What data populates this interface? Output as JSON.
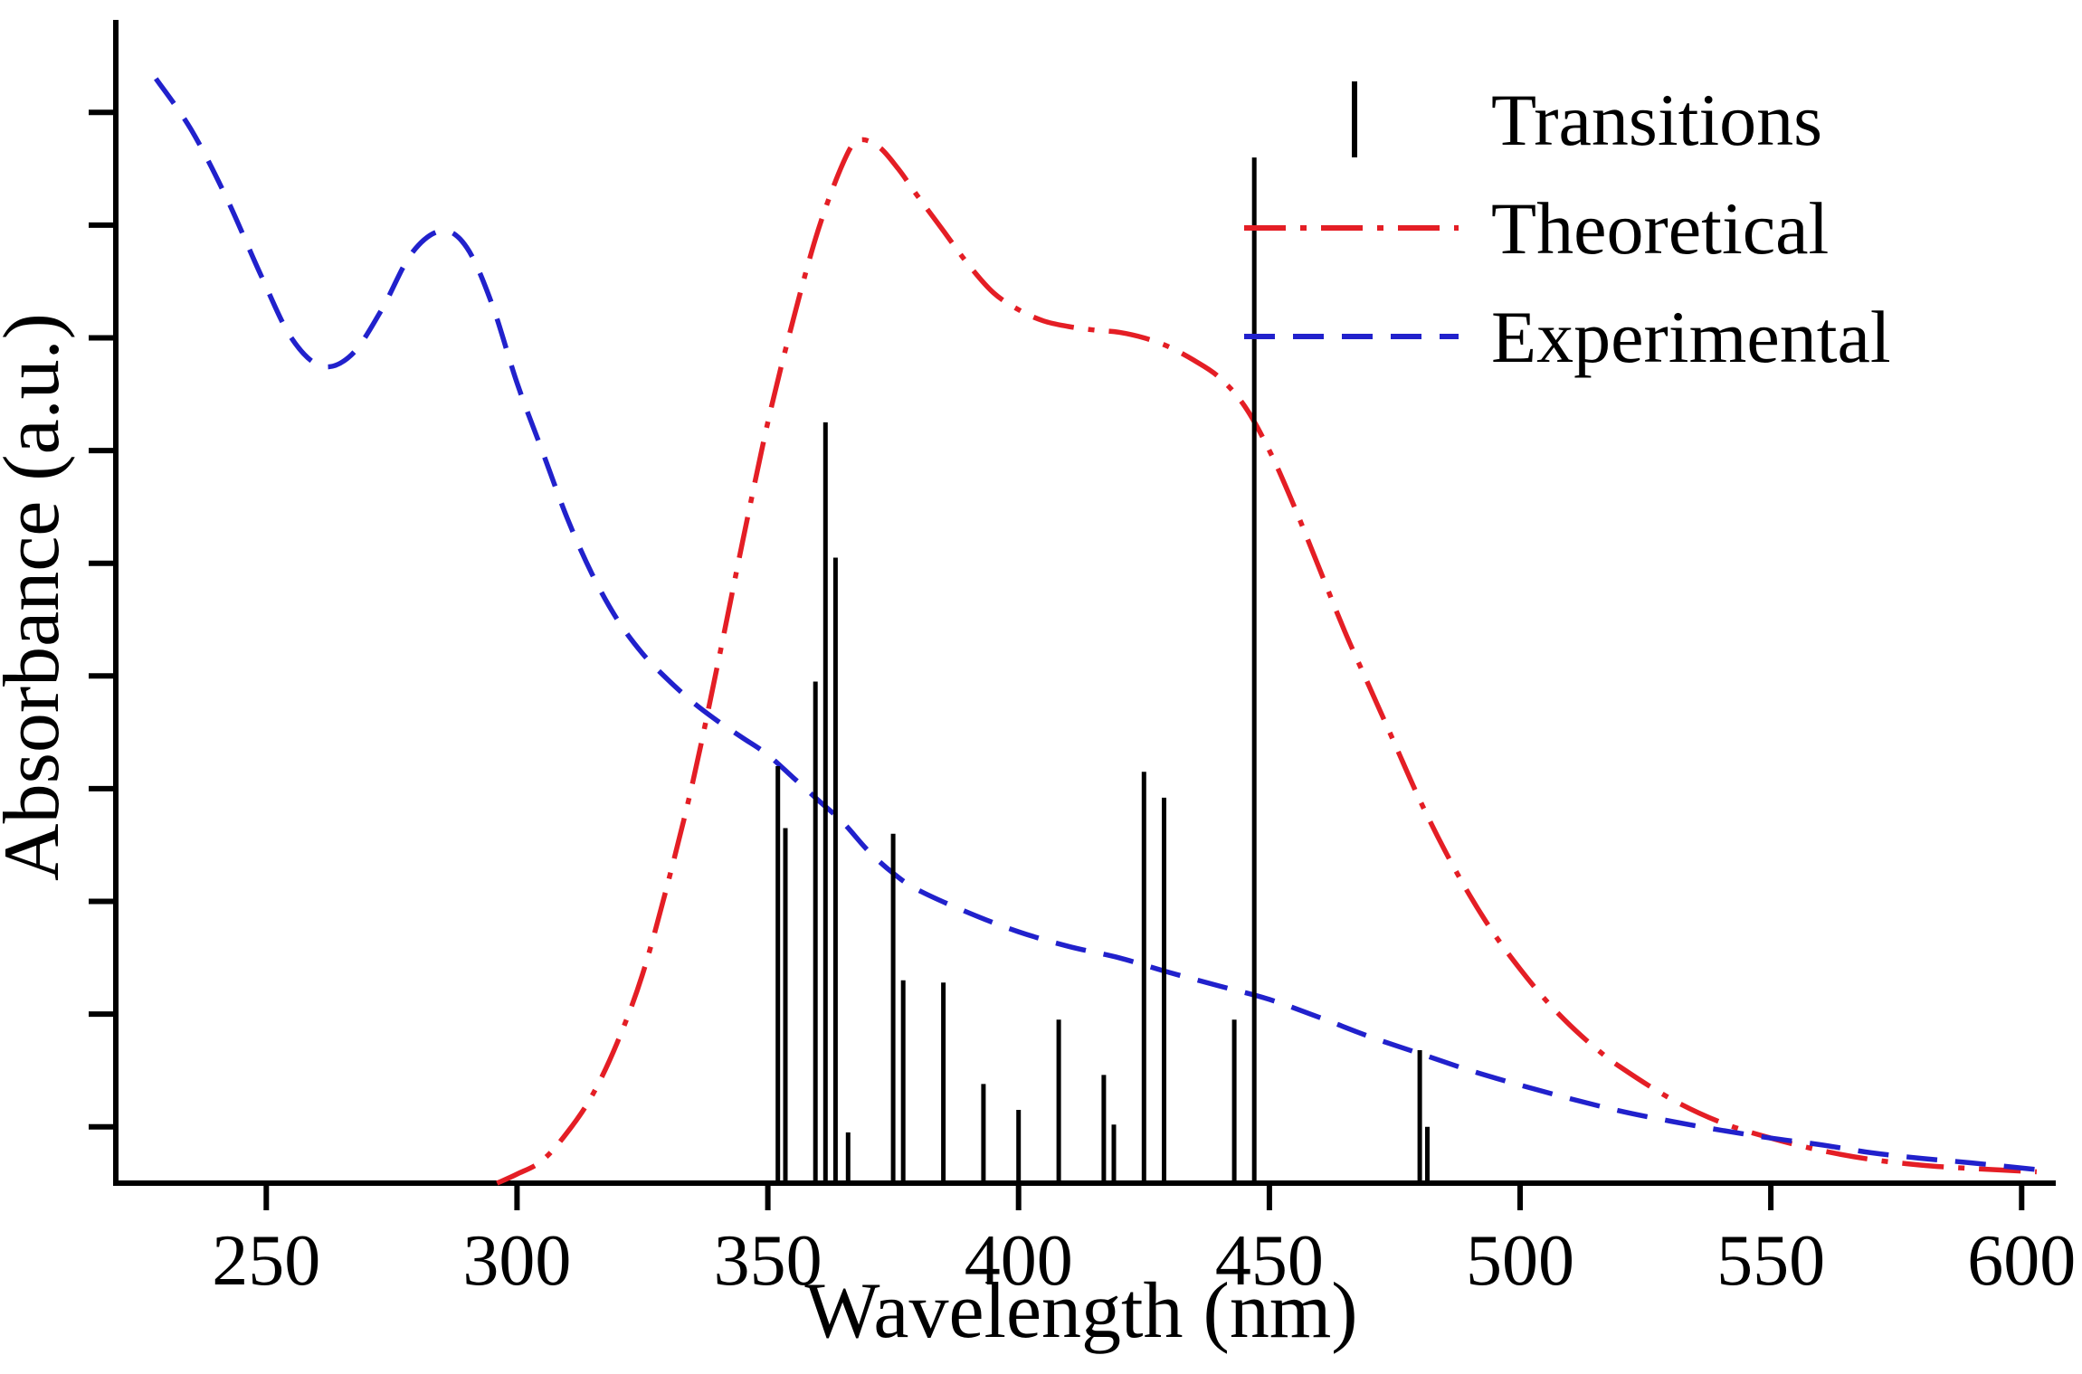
{
  "figure": {
    "background": "#ffffff"
  },
  "chart_data": {
    "type": "line",
    "title": "",
    "xlabel": "Wavelength (nm)",
    "ylabel": "Absorbance (a.u.)",
    "xlim": [
      220,
      605
    ],
    "ylim": [
      0,
      1
    ],
    "x_ticks": [
      250,
      300,
      350,
      400,
      450,
      500,
      550,
      600
    ],
    "y_ticks": [
      0.05,
      0.15,
      0.25,
      0.35,
      0.45,
      0.55,
      0.65,
      0.75,
      0.85,
      0.95
    ],
    "y_tick_labels_shown": false,
    "grid": false,
    "legend": {
      "position": "top-right",
      "items": [
        {
          "label": "Transitions",
          "color": "#000000",
          "linestyle": "solid",
          "sample": "vertical-line"
        },
        {
          "label": "Theoretical",
          "color": "#e41e25",
          "linestyle": "dashdot",
          "sample": "horizontal-line"
        },
        {
          "label": "Experimental",
          "color": "#2121cc",
          "linestyle": "dashed",
          "sample": "horizontal-line"
        }
      ]
    },
    "series": [
      {
        "name": "Theoretical",
        "type": "line",
        "color": "#e41e25",
        "linestyle": "dashdot",
        "x": [
          296,
          300,
          305,
          310,
          315,
          320,
          325,
          330,
          335,
          340,
          345,
          350,
          355,
          360,
          365,
          368,
          372,
          376,
          380,
          385,
          390,
          395,
          400,
          405,
          410,
          415,
          420,
          425,
          430,
          435,
          440,
          445,
          450,
          455,
          460,
          465,
          470,
          475,
          480,
          485,
          490,
          495,
          500,
          505,
          510,
          515,
          520,
          530,
          540,
          550,
          560,
          570,
          580,
          590,
          603
        ],
        "y": [
          0.0,
          0.008,
          0.02,
          0.045,
          0.078,
          0.125,
          0.185,
          0.265,
          0.355,
          0.46,
          0.57,
          0.675,
          0.765,
          0.845,
          0.905,
          0.925,
          0.92,
          0.9,
          0.875,
          0.845,
          0.815,
          0.79,
          0.775,
          0.765,
          0.76,
          0.757,
          0.755,
          0.75,
          0.742,
          0.73,
          0.715,
          0.69,
          0.65,
          0.6,
          0.545,
          0.49,
          0.44,
          0.39,
          0.34,
          0.295,
          0.255,
          0.22,
          0.19,
          0.163,
          0.14,
          0.12,
          0.103,
          0.075,
          0.054,
          0.04,
          0.029,
          0.021,
          0.016,
          0.013,
          0.01
        ]
      },
      {
        "name": "Experimental",
        "type": "line",
        "color": "#2121cc",
        "linestyle": "dashed",
        "x": [
          228,
          235,
          242,
          249,
          255,
          261,
          267,
          273,
          279,
          285,
          290,
          295,
          300,
          305,
          310,
          315,
          320,
          325,
          330,
          335,
          340,
          345,
          350,
          355,
          360,
          365,
          370,
          375,
          380,
          390,
          400,
          410,
          420,
          430,
          440,
          450,
          460,
          470,
          480,
          490,
          500,
          510,
          520,
          530,
          540,
          550,
          560,
          570,
          580,
          590,
          603
        ],
        "y": [
          0.98,
          0.935,
          0.875,
          0.805,
          0.75,
          0.725,
          0.735,
          0.775,
          0.825,
          0.845,
          0.83,
          0.78,
          0.71,
          0.65,
          0.59,
          0.54,
          0.5,
          0.47,
          0.447,
          0.427,
          0.41,
          0.395,
          0.38,
          0.36,
          0.34,
          0.32,
          0.295,
          0.275,
          0.26,
          0.24,
          0.223,
          0.21,
          0.2,
          0.187,
          0.175,
          0.163,
          0.147,
          0.13,
          0.115,
          0.1,
          0.087,
          0.075,
          0.064,
          0.055,
          0.047,
          0.04,
          0.034,
          0.027,
          0.022,
          0.018,
          0.012
        ]
      },
      {
        "name": "Transitions",
        "type": "stick",
        "color": "#000000",
        "x": [
          352,
          353.5,
          359.5,
          361.5,
          363.5,
          366,
          375,
          377,
          385,
          393,
          400,
          408,
          417,
          419,
          425,
          429,
          443,
          447,
          480,
          481.5
        ],
        "y": [
          0.37,
          0.315,
          0.445,
          0.675,
          0.555,
          0.045,
          0.31,
          0.18,
          0.178,
          0.088,
          0.065,
          0.145,
          0.096,
          0.052,
          0.365,
          0.342,
          0.145,
          0.91,
          0.118,
          0.05
        ]
      }
    ]
  }
}
